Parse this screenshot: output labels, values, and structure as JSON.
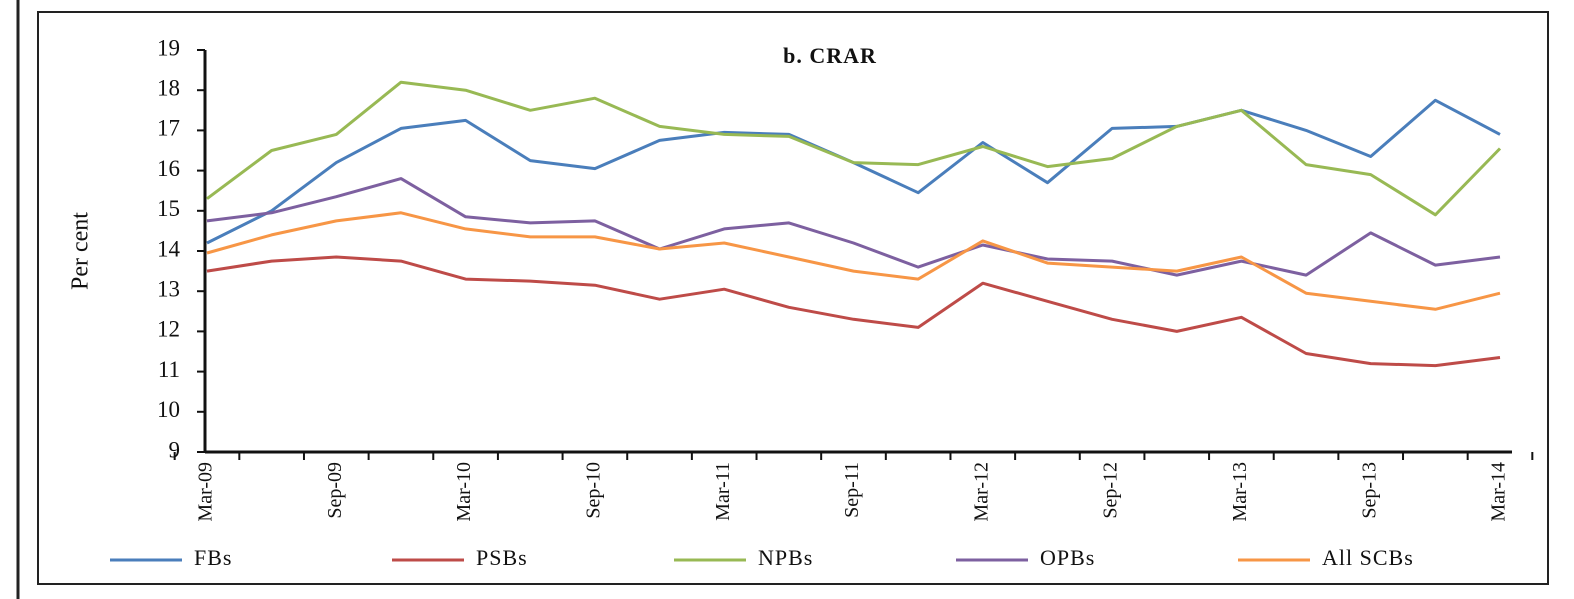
{
  "chart_data": {
    "type": "line",
    "title": "b. CRAR",
    "y_label": "Per cent",
    "categories": [
      "Mar-09",
      null,
      "Sep-09",
      null,
      "Mar-10",
      null,
      "Sep-10",
      null,
      "Mar-11",
      null,
      "Sep-11",
      null,
      "Mar-12",
      null,
      "Sep-12",
      null,
      "Mar-13",
      null,
      "Sep-13",
      null,
      "Mar-14"
    ],
    "series": [
      {
        "name": "FBs",
        "color": "#4a7ebb",
        "values": [
          14.2,
          15.0,
          16.2,
          17.05,
          17.25,
          16.25,
          16.05,
          16.75,
          16.95,
          16.9,
          16.2,
          15.45,
          16.7,
          15.7,
          17.05,
          17.1,
          17.5,
          17.0,
          16.35,
          17.75,
          16.9
        ]
      },
      {
        "name": "PSBs",
        "color": "#be4b48",
        "values": [
          13.5,
          13.75,
          13.85,
          13.75,
          13.3,
          13.25,
          13.15,
          12.8,
          13.05,
          12.6,
          12.3,
          12.1,
          13.2,
          12.75,
          12.3,
          12.0,
          12.35,
          11.45,
          11.2,
          11.15,
          11.35
        ]
      },
      {
        "name": "NPBs",
        "color": "#98b954",
        "values": [
          15.3,
          16.5,
          16.9,
          18.2,
          18.0,
          17.5,
          17.8,
          17.1,
          16.9,
          16.85,
          16.2,
          16.15,
          16.6,
          16.1,
          16.3,
          17.1,
          17.5,
          16.15,
          15.9,
          14.9,
          16.55
        ]
      },
      {
        "name": "OPBs",
        "color": "#7d60a0",
        "values": [
          14.75,
          14.95,
          15.35,
          15.8,
          14.85,
          14.7,
          14.75,
          14.05,
          14.55,
          14.7,
          14.2,
          13.6,
          14.15,
          13.8,
          13.75,
          13.4,
          13.75,
          13.4,
          14.45,
          13.65,
          13.85
        ]
      },
      {
        "name": "All SCBs",
        "color": "#f79646",
        "values": [
          13.95,
          14.4,
          14.75,
          14.95,
          14.55,
          14.35,
          14.35,
          14.05,
          14.2,
          13.85,
          13.5,
          13.3,
          14.25,
          13.7,
          13.6,
          13.5,
          13.85,
          12.95,
          12.75,
          12.55,
          12.95
        ]
      }
    ],
    "ylim": [
      9,
      19
    ],
    "yticks": [
      9,
      10,
      11,
      12,
      13,
      14,
      15,
      16,
      17,
      18,
      19
    ],
    "grid": false,
    "legend": "bottom"
  }
}
